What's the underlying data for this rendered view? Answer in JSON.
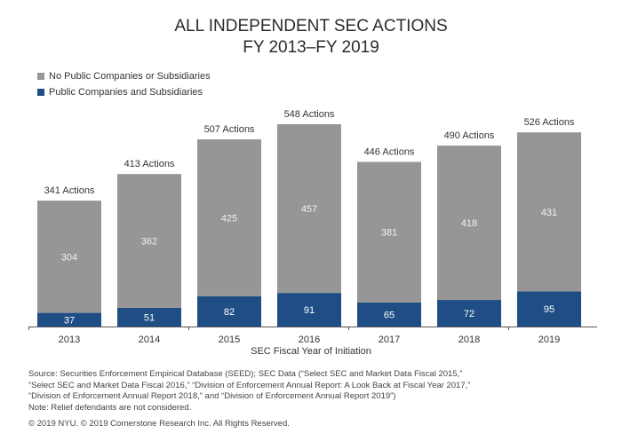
{
  "chart_data": {
    "type": "bar",
    "stacked": true,
    "title": "ALL INDEPENDENT SEC ACTIONS",
    "subtitle": "FY 2013–FY 2019",
    "xlabel": "SEC Fiscal Year of Initiation",
    "ylabel": "",
    "categories": [
      "2013",
      "2014",
      "2015",
      "2016",
      "2017",
      "2018",
      "2019"
    ],
    "series": [
      {
        "name": "Public Companies and Subsidiaries",
        "color": "#1f4e85",
        "values": [
          37,
          51,
          82,
          91,
          65,
          72,
          95
        ]
      },
      {
        "name": "No Public Companies or Subsidiaries",
        "color": "#969696",
        "values": [
          304,
          362,
          425,
          457,
          381,
          418,
          431
        ]
      }
    ],
    "totals": [
      341,
      413,
      507,
      548,
      446,
      490,
      526
    ],
    "total_labels": [
      "341 Actions",
      "413 Actions",
      "507 Actions",
      "548 Actions",
      "446 Actions",
      "490 Actions",
      "526 Actions"
    ],
    "ylim": [
      0,
      548
    ],
    "grid": false,
    "legend_position": "top-left",
    "legend": [
      {
        "label": "No Public Companies or Subsidiaries",
        "color": "#969696"
      },
      {
        "label": "Public Companies and Subsidiaries",
        "color": "#1f4e85"
      }
    ]
  },
  "notes": {
    "source_line1": "Source: Securities Enforcement Empirical Database (SEED); SEC Data (“Select SEC and Market Data Fiscal 2015,”",
    "source_line2": "“Select SEC and Market Data Fiscal 2016,” “Division of Enforcement Annual Report: A Look Back at Fiscal Year 2017,”",
    "source_line3": "“Division of Enforcement Annual Report 2018,” and “Division of Enforcement Annual Report 2019”)",
    "note": "Note: Relief defendants are not considered.",
    "copyright": "© 2019 NYU. © 2019 Cornerstone Research Inc. All Rights Reserved."
  }
}
